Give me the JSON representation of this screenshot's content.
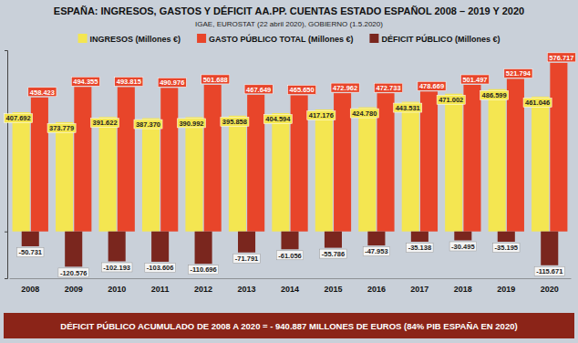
{
  "chart_data": {
    "type": "bar",
    "title": "ESPAÑA: INGRESOS, GASTOS Y DÉFICIT AA.PP. CUENTAS ESTADO ESPAÑOL 2008 – 2019 Y 2020",
    "subtitle": "IGAE, EUROSTAT (22 abril 2020), GOBIERNO (1.5.2020)",
    "annotations": [
      "DÉFICIT PÚBLICO ACUMULADO DE 2008 A 2020 = - 940.887 MILLONES DE EUROS (84% PIB ESPAÑA EN 2020)"
    ],
    "categories": [
      "2008",
      "2009",
      "2010",
      "2011",
      "2012",
      "2013",
      "2014",
      "2015",
      "2016",
      "2017",
      "2018",
      "2019",
      "2020"
    ],
    "series": [
      {
        "name": "INGRESOS (Millones €)",
        "color": "#f4e651",
        "values": [
          407692,
          373779,
          391622,
          387370,
          390992,
          395858,
          404594,
          417176,
          424780,
          443531,
          471002,
          486599,
          461046
        ],
        "value_labels": [
          "407.692",
          "373.779",
          "391.622",
          "387.370",
          "390.992",
          "395.858",
          "404.594",
          "417.176",
          "424.780",
          "443.531",
          "471.002",
          "486.599",
          "461.046"
        ]
      },
      {
        "name": "GASTO PÚBLICO TOTAL (Millones €)",
        "color": "#e8452a",
        "values": [
          458423,
          494355,
          493815,
          490976,
          501688,
          467649,
          465650,
          472962,
          472733,
          478669,
          501497,
          521794,
          576717
        ],
        "value_labels": [
          "458.423",
          "494.355",
          "493.815",
          "490.976",
          "501.688",
          "467.649",
          "465.650",
          "472.962",
          "472.733",
          "478.669",
          "501.497",
          "521.794",
          "576.717"
        ]
      },
      {
        "name": "DÉFICIT PÚBLICO (Millones €)",
        "color": "#7a261e",
        "values": [
          -50731,
          -120576,
          -102193,
          -103606,
          -110696,
          -71791,
          -61056,
          -55786,
          -47953,
          -35138,
          -30495,
          -35195,
          -115671
        ],
        "value_labels": [
          "-50.731",
          "-120.576",
          "-102.193",
          "-103.606",
          "-110.696",
          "-71.791",
          "-61.056",
          "-55.786",
          "-47.953",
          "-35.138",
          "-30.495",
          "-35.195",
          "-115.671"
        ]
      }
    ],
    "ylim": [
      -160000,
      620000
    ],
    "yticks": [
      0
    ],
    "tick_labels": "x",
    "grid": false,
    "legend": "top",
    "data_labels": true
  }
}
